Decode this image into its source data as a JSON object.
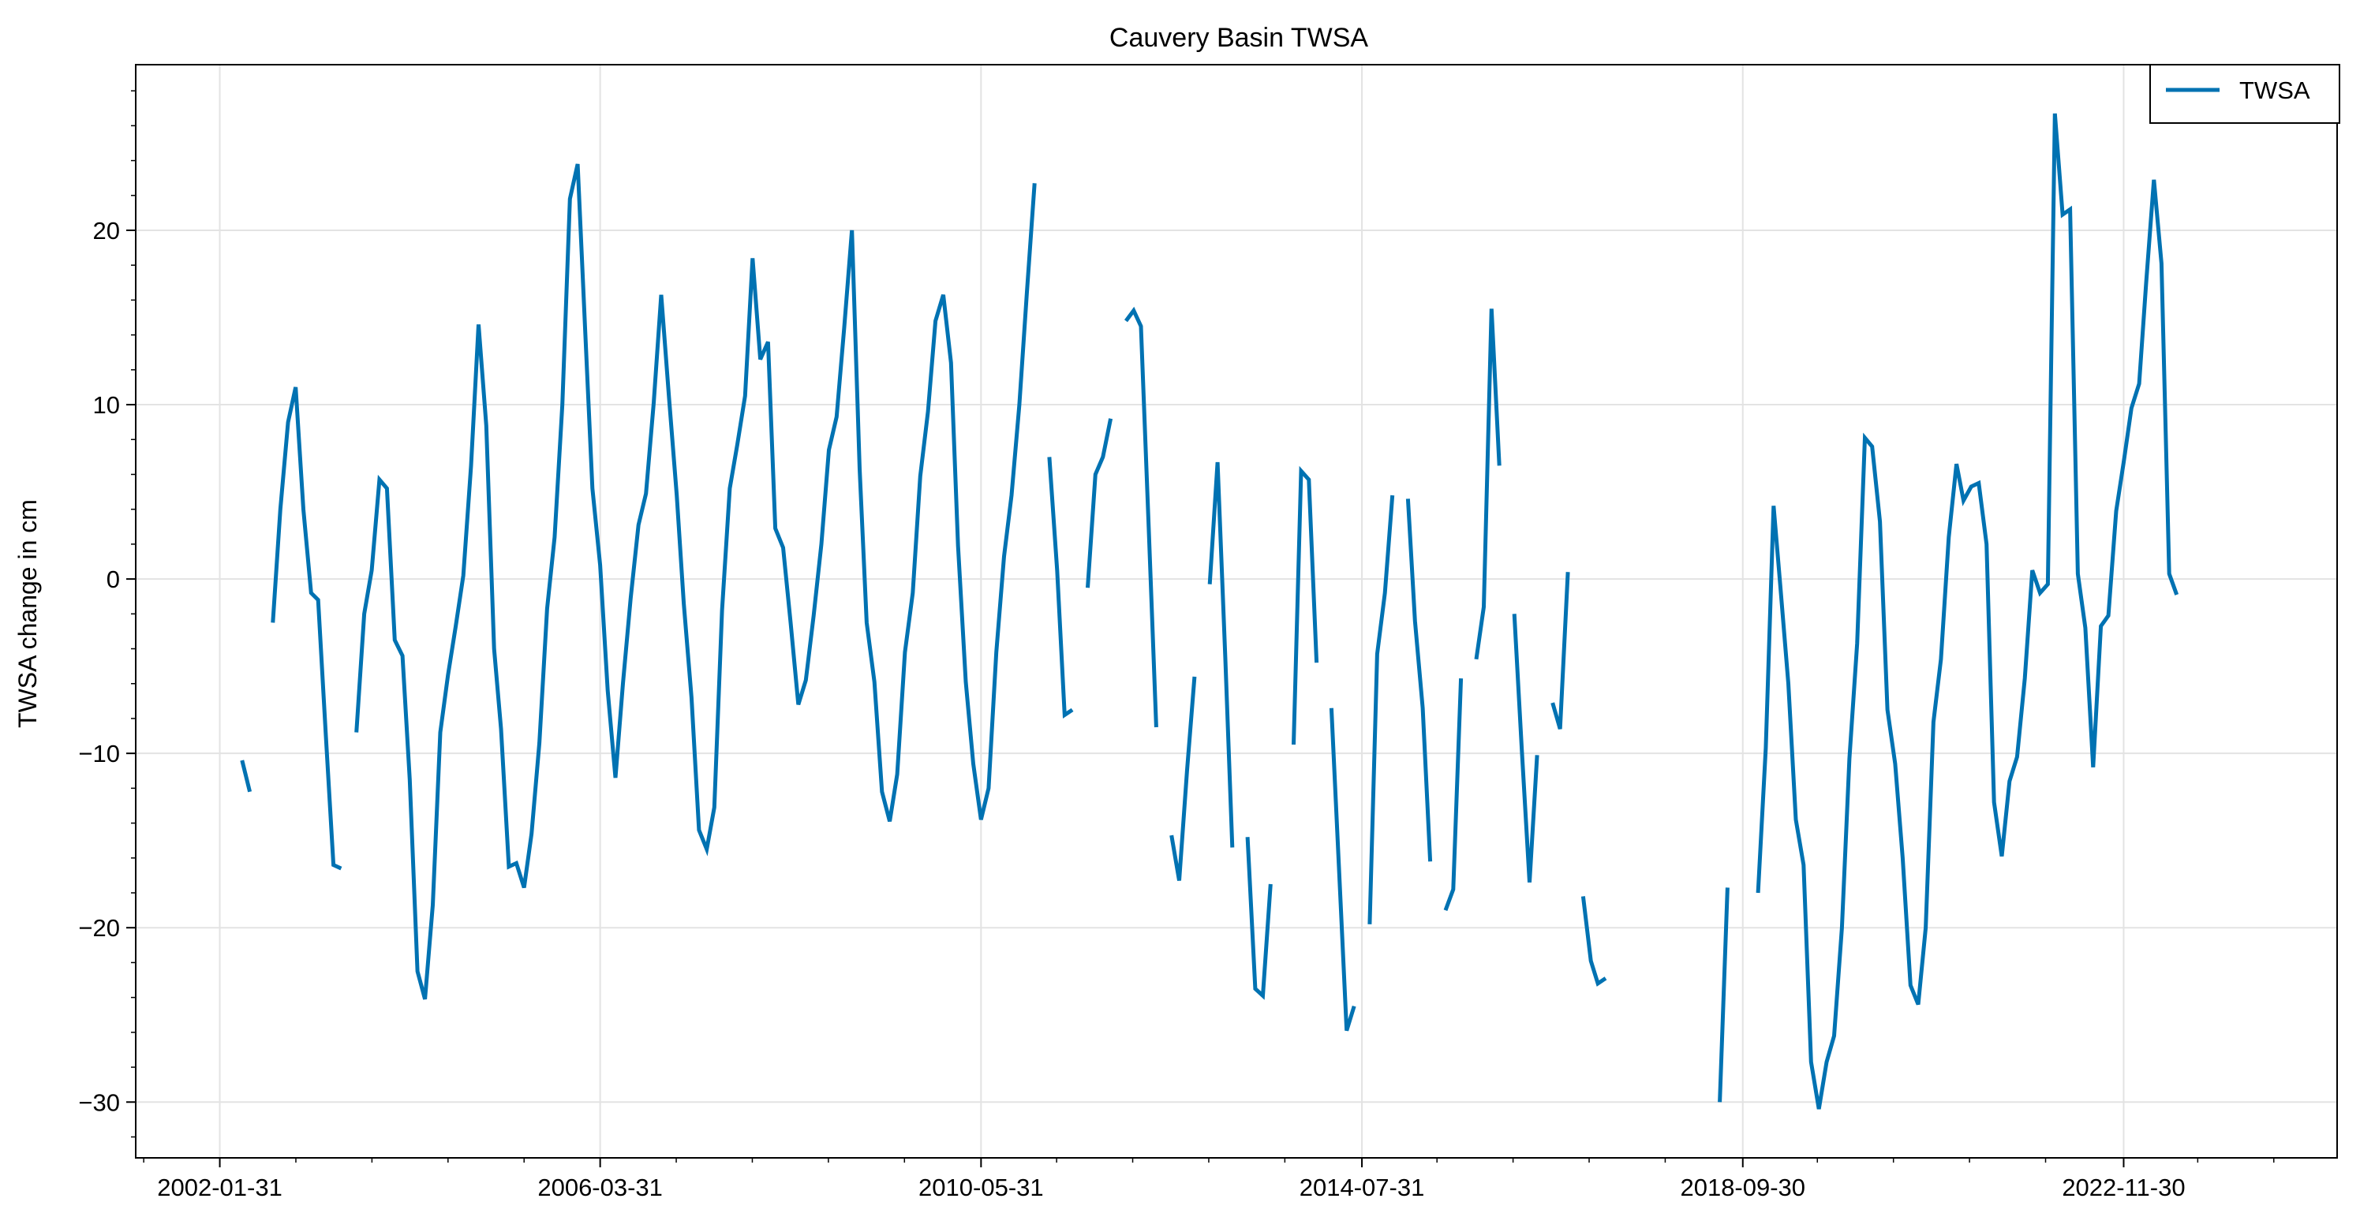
{
  "chart_data": {
    "type": "line",
    "title": "Cauvery Basin TWSA",
    "xlabel": "",
    "ylabel": "TWSA change in cm",
    "x_ticks": [
      "2002-01-31",
      "2006-03-31",
      "2010-05-31",
      "2014-07-31",
      "2018-09-30",
      "2022-11-30"
    ],
    "x_range": [
      "2001-03-01",
      "2025-04-01"
    ],
    "ylim": [
      -33.2,
      29.5
    ],
    "y_ticks": [
      20,
      10,
      0,
      -10,
      -20,
      -30
    ],
    "y_tick_labels": [
      "20",
      "10",
      "0",
      "−10",
      "−20",
      "−30"
    ],
    "grid": true,
    "legend_position": "top-right",
    "series": [
      {
        "name": "TWSA",
        "color": "#0072b2",
        "segments": [
          [
            [
              "2002-04-30",
              -10.4
            ],
            [
              "2002-05-31",
              -12.2
            ]
          ],
          [
            [
              "2002-08-31",
              -2.5
            ],
            [
              "2002-09-30",
              4.0
            ],
            [
              "2002-10-31",
              9.0
            ],
            [
              "2002-11-30",
              11.0
            ],
            [
              "2002-12-31",
              4.0
            ],
            [
              "2003-01-31",
              -0.8
            ],
            [
              "2003-02-28",
              -1.2
            ],
            [
              "2003-03-31",
              -9.0
            ],
            [
              "2003-04-30",
              -16.4
            ],
            [
              "2003-05-31",
              -16.6
            ]
          ],
          [
            [
              "2003-07-31",
              -8.8
            ],
            [
              "2003-08-31",
              -2.0
            ],
            [
              "2003-09-30",
              0.5
            ],
            [
              "2003-10-31",
              5.7
            ],
            [
              "2003-11-30",
              5.2
            ],
            [
              "2003-12-31",
              -3.5
            ],
            [
              "2004-01-31",
              -4.4
            ],
            [
              "2004-02-29",
              -11.5
            ],
            [
              "2004-03-31",
              -22.5
            ],
            [
              "2004-04-30",
              -24.1
            ],
            [
              "2004-05-31",
              -18.7
            ],
            [
              "2004-06-30",
              -8.8
            ],
            [
              "2004-07-31",
              -5.5
            ],
            [
              "2004-08-31",
              -2.7
            ],
            [
              "2004-09-30",
              0.2
            ],
            [
              "2004-10-31",
              6.5
            ],
            [
              "2004-11-30",
              14.6
            ],
            [
              "2004-12-31",
              8.8
            ],
            [
              "2005-01-31",
              -4.0
            ],
            [
              "2005-02-28",
              -8.6
            ],
            [
              "2005-03-31",
              -16.5
            ],
            [
              "2005-04-30",
              -16.3
            ],
            [
              "2005-05-31",
              -17.7
            ],
            [
              "2005-06-30",
              -14.6
            ],
            [
              "2005-07-31",
              -9.4
            ],
            [
              "2005-08-31",
              -1.7
            ],
            [
              "2005-09-30",
              2.4
            ],
            [
              "2005-10-31",
              10.0
            ],
            [
              "2005-11-30",
              21.8
            ],
            [
              "2005-12-31",
              23.8
            ],
            [
              "2006-01-31",
              14.0
            ],
            [
              "2006-02-28",
              5.2
            ],
            [
              "2006-03-31",
              0.8
            ],
            [
              "2006-04-30",
              -6.4
            ],
            [
              "2006-05-31",
              -11.4
            ],
            [
              "2006-06-30",
              -6.0
            ],
            [
              "2006-07-31",
              -1.1
            ],
            [
              "2006-08-31",
              3.1
            ],
            [
              "2006-09-30",
              4.9
            ],
            [
              "2006-10-31",
              10.1
            ],
            [
              "2006-11-30",
              16.3
            ],
            [
              "2006-12-31",
              10.4
            ],
            [
              "2007-01-31",
              4.8
            ],
            [
              "2007-02-28",
              -1.4
            ],
            [
              "2007-03-31",
              -6.8
            ],
            [
              "2007-04-30",
              -14.4
            ],
            [
              "2007-05-31",
              -15.5
            ],
            [
              "2007-06-30",
              -13.1
            ],
            [
              "2007-07-31",
              -1.8
            ],
            [
              "2007-08-31",
              5.2
            ],
            [
              "2007-09-30",
              7.7
            ],
            [
              "2007-10-31",
              10.5
            ],
            [
              "2007-11-30",
              18.4
            ],
            [
              "2007-12-31",
              12.6
            ],
            [
              "2008-01-31",
              13.6
            ],
            [
              "2008-02-29",
              2.9
            ],
            [
              "2008-03-31",
              1.8
            ],
            [
              "2008-04-30",
              -2.5
            ],
            [
              "2008-05-31",
              -7.2
            ],
            [
              "2008-06-30",
              -5.8
            ],
            [
              "2008-07-31",
              -2.1
            ],
            [
              "2008-08-31",
              2.0
            ],
            [
              "2008-09-30",
              7.4
            ],
            [
              "2008-10-31",
              9.3
            ],
            [
              "2008-11-30",
              14.4
            ],
            [
              "2008-12-31",
              20.0
            ],
            [
              "2009-01-31",
              6.3
            ],
            [
              "2009-02-28",
              -2.5
            ],
            [
              "2009-03-31",
              -5.9
            ],
            [
              "2009-04-30",
              -12.2
            ],
            [
              "2009-05-31",
              -13.9
            ],
            [
              "2009-06-30",
              -11.2
            ],
            [
              "2009-07-31",
              -4.2
            ],
            [
              "2009-08-31",
              -0.8
            ],
            [
              "2009-09-30",
              5.9
            ],
            [
              "2009-10-31",
              9.6
            ],
            [
              "2009-11-30",
              14.8
            ],
            [
              "2009-12-31",
              16.3
            ],
            [
              "2010-01-31",
              12.4
            ],
            [
              "2010-02-28",
              1.9
            ],
            [
              "2010-03-31",
              -5.9
            ],
            [
              "2010-04-30",
              -10.6
            ],
            [
              "2010-05-31",
              -13.8
            ],
            [
              "2010-06-30",
              -12.0
            ],
            [
              "2010-07-31",
              -4.2
            ],
            [
              "2010-08-31",
              1.3
            ],
            [
              "2010-09-30",
              4.8
            ],
            [
              "2010-10-31",
              10.0
            ],
            [
              "2010-11-30",
              16.4
            ],
            [
              "2010-12-31",
              22.7
            ]
          ],
          [
            [
              "2011-02-28",
              7.0
            ],
            [
              "2011-03-31",
              0.5
            ],
            [
              "2011-04-30",
              -7.8
            ],
            [
              "2011-05-31",
              -7.5
            ]
          ],
          [
            [
              "2011-07-31",
              -0.5
            ],
            [
              "2011-08-31",
              6.0
            ],
            [
              "2011-09-30",
              7.0
            ],
            [
              "2011-10-31",
              9.2
            ]
          ],
          [
            [
              "2011-12-31",
              14.8
            ],
            [
              "2012-01-31",
              15.4
            ],
            [
              "2012-02-29",
              14.5
            ],
            [
              "2012-03-31",
              3.0
            ],
            [
              "2012-04-30",
              -8.5
            ]
          ],
          [
            [
              "2012-06-30",
              -14.7
            ],
            [
              "2012-07-31",
              -17.3
            ],
            [
              "2012-08-31",
              -11.0
            ],
            [
              "2012-09-30",
              -5.6
            ]
          ],
          [
            [
              "2012-11-30",
              -0.3
            ],
            [
              "2012-12-31",
              6.7
            ],
            [
              "2013-01-31",
              -4.5
            ],
            [
              "2013-02-28",
              -15.4
            ]
          ],
          [
            [
              "2013-04-30",
              -14.8
            ],
            [
              "2013-05-31",
              -23.5
            ],
            [
              "2013-06-30",
              -23.9
            ],
            [
              "2013-07-31",
              -17.5
            ]
          ],
          [
            [
              "2013-10-31",
              -9.5
            ],
            [
              "2013-11-30",
              6.2
            ],
            [
              "2013-12-31",
              5.7
            ],
            [
              "2014-01-31",
              -4.8
            ]
          ],
          [
            [
              "2014-03-31",
              -7.4
            ],
            [
              "2014-04-30",
              -16.5
            ],
            [
              "2014-05-31",
              -25.9
            ],
            [
              "2014-06-30",
              -24.5
            ]
          ],
          [
            [
              "2014-08-31",
              -19.8
            ],
            [
              "2014-09-30",
              -4.3
            ],
            [
              "2014-10-31",
              -0.8
            ],
            [
              "2014-11-30",
              4.8
            ]
          ],
          [
            [
              "2015-01-31",
              4.6
            ],
            [
              "2015-02-28",
              -2.4
            ],
            [
              "2015-03-31",
              -7.4
            ],
            [
              "2015-04-30",
              -16.2
            ]
          ],
          [
            [
              "2015-06-30",
              -19.0
            ],
            [
              "2015-07-31",
              -17.8
            ],
            [
              "2015-08-31",
              -5.7
            ]
          ],
          [
            [
              "2015-10-31",
              -4.6
            ],
            [
              "2015-11-30",
              -1.6
            ],
            [
              "2015-12-31",
              15.5
            ],
            [
              "2016-01-31",
              6.5
            ]
          ],
          [
            [
              "2016-03-31",
              -2.0
            ],
            [
              "2016-04-30",
              -9.8
            ],
            [
              "2016-05-31",
              -17.4
            ],
            [
              "2016-06-30",
              -10.1
            ]
          ],
          [
            [
              "2016-08-31",
              -7.1
            ],
            [
              "2016-09-30",
              -8.6
            ],
            [
              "2016-10-31",
              0.4
            ]
          ],
          [
            [
              "2016-12-31",
              -18.2
            ],
            [
              "2017-01-31",
              -21.9
            ],
            [
              "2017-02-28",
              -23.2
            ],
            [
              "2017-03-31",
              -22.9
            ]
          ],
          [
            [
              "2018-06-30",
              -30.0
            ],
            [
              "2018-07-31",
              -17.7
            ]
          ],
          [
            [
              "2018-11-30",
              -18.0
            ],
            [
              "2018-12-31",
              -9.7
            ],
            [
              "2019-01-31",
              4.2
            ],
            [
              "2019-02-28",
              -0.6
            ],
            [
              "2019-03-31",
              -6.0
            ],
            [
              "2019-04-30",
              -13.8
            ],
            [
              "2019-05-31",
              -16.4
            ],
            [
              "2019-06-30",
              -27.7
            ],
            [
              "2019-07-31",
              -30.4
            ],
            [
              "2019-08-31",
              -27.7
            ],
            [
              "2019-09-30",
              -26.2
            ],
            [
              "2019-10-31",
              -20.0
            ],
            [
              "2019-11-30",
              -10.3
            ],
            [
              "2019-12-31",
              -3.7
            ],
            [
              "2020-01-31",
              8.1
            ],
            [
              "2020-02-29",
              7.6
            ],
            [
              "2020-03-31",
              3.3
            ],
            [
              "2020-04-30",
              -7.5
            ],
            [
              "2020-05-31",
              -10.6
            ],
            [
              "2020-06-30",
              -16.0
            ],
            [
              "2020-07-31",
              -23.3
            ],
            [
              "2020-08-31",
              -24.4
            ],
            [
              "2020-09-30",
              -20.0
            ],
            [
              "2020-10-31",
              -8.2
            ],
            [
              "2020-11-30",
              -4.6
            ],
            [
              "2020-12-31",
              2.4
            ],
            [
              "2021-01-31",
              6.6
            ],
            [
              "2021-02-28",
              4.5
            ],
            [
              "2021-03-31",
              5.3
            ],
            [
              "2021-04-30",
              5.5
            ],
            [
              "2021-05-31",
              2.0
            ],
            [
              "2021-06-30",
              -12.8
            ],
            [
              "2021-07-31",
              -15.9
            ],
            [
              "2021-08-31",
              -11.6
            ],
            [
              "2021-09-30",
              -10.2
            ],
            [
              "2021-10-31",
              -5.7
            ],
            [
              "2021-11-30",
              0.5
            ],
            [
              "2021-12-31",
              -0.8
            ],
            [
              "2022-01-31",
              -0.3
            ],
            [
              "2022-02-28",
              26.7
            ],
            [
              "2022-03-31",
              20.9
            ],
            [
              "2022-04-30",
              21.2
            ],
            [
              "2022-05-31",
              0.3
            ],
            [
              "2022-06-30",
              -2.8
            ],
            [
              "2022-07-31",
              -10.8
            ],
            [
              "2022-08-31",
              -2.7
            ],
            [
              "2022-09-30",
              -2.1
            ],
            [
              "2022-10-31",
              3.9
            ],
            [
              "2022-11-30",
              6.7
            ],
            [
              "2022-12-31",
              9.8
            ],
            [
              "2023-01-31",
              11.2
            ],
            [
              "2023-02-28",
              17.0
            ],
            [
              "2023-03-31",
              22.9
            ],
            [
              "2023-04-30",
              18.1
            ],
            [
              "2023-05-31",
              0.3
            ],
            [
              "2023-06-30",
              -0.9
            ]
          ]
        ]
      }
    ]
  }
}
